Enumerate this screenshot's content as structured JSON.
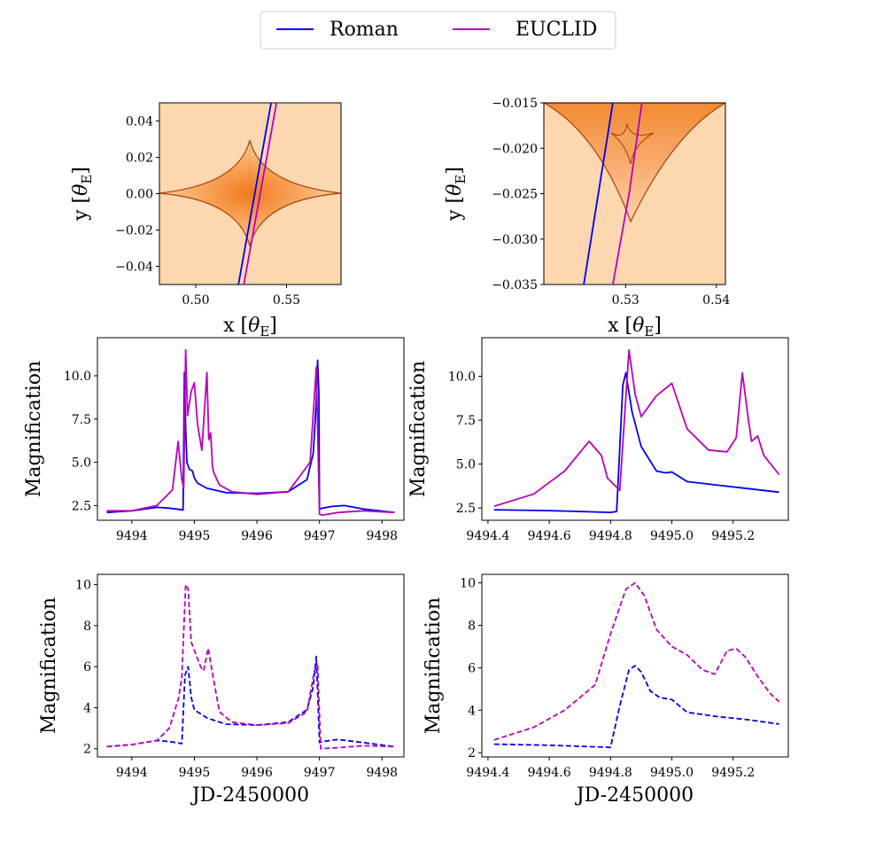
{
  "colors": {
    "roman": "#0000ee",
    "euclid": "#bb00bb",
    "map_light": "#fddcb8",
    "map_dark": "#b34700"
  },
  "legend": {
    "entries": [
      {
        "label": "Roman",
        "color": "#0000ee"
      },
      {
        "label": "EUCLID",
        "color": "#bb00bb"
      }
    ]
  },
  "chart_data": [
    {
      "id": "map_full",
      "type": "heatmap",
      "xlabel": "x [θ_E]",
      "ylabel": "y [θ_E]",
      "xlim": [
        0.48,
        0.58
      ],
      "ylim": [
        -0.05,
        0.05
      ],
      "xticks": [
        0.5,
        0.55
      ],
      "xticklabels": [
        "0.50",
        "0.55"
      ],
      "yticks": [
        -0.04,
        -0.02,
        0.0,
        0.02,
        0.04
      ],
      "yticklabels": [
        "−0.04",
        "−0.02",
        "0.00",
        "0.02",
        "0.04"
      ],
      "series": [
        {
          "name": "Roman",
          "points": [
            [
              0.5235,
              -0.05
            ],
            [
              0.5325,
              0.0
            ],
            [
              0.5415,
              0.05
            ]
          ]
        },
        {
          "name": "EUCLID",
          "points": [
            [
              0.5265,
              -0.05
            ],
            [
              0.5355,
              0.0
            ],
            [
              0.5445,
              0.05
            ]
          ]
        }
      ]
    },
    {
      "id": "map_zoom",
      "type": "heatmap",
      "xlabel": "x [θ_E]",
      "ylabel": "y [θ_E]",
      "xlim": [
        0.521,
        0.541
      ],
      "ylim": [
        -0.035,
        -0.015
      ],
      "xticks": [
        0.53,
        0.54
      ],
      "xticklabels": [
        "0.53",
        "0.54"
      ],
      "yticks": [
        -0.035,
        -0.03,
        -0.025,
        -0.02,
        -0.015
      ],
      "yticklabels": [
        "−0.035",
        "−0.030",
        "−0.025",
        "−0.020",
        "−0.015"
      ],
      "series": [
        {
          "name": "Roman",
          "points": [
            [
              0.5254,
              -0.035
            ],
            [
              0.5286,
              -0.015
            ]
          ]
        },
        {
          "name": "EUCLID",
          "points": [
            [
              0.5286,
              -0.035
            ],
            [
              0.5304,
              -0.025
            ],
            [
              0.5318,
              -0.015
            ]
          ]
        }
      ]
    },
    {
      "id": "lc_full",
      "type": "line",
      "xlabel": "",
      "ylabel": "Magnification",
      "xlim": [
        9493.45,
        9498.35
      ],
      "ylim": [
        1.65,
        12.2
      ],
      "xticks": [
        9494,
        9495,
        9496,
        9497,
        9498
      ],
      "xticklabels": [
        "9494",
        "9495",
        "9496",
        "9497",
        "9498"
      ],
      "yticks": [
        2.5,
        5.0,
        7.5,
        10.0
      ],
      "yticklabels": [
        "2.5",
        "5.0",
        "7.5",
        "10.0"
      ],
      "series": [
        {
          "name": "Roman",
          "style": "solid",
          "x": [
            9493.6,
            9494.0,
            9494.4,
            9494.6,
            9494.82,
            9494.84,
            9494.86,
            9494.88,
            9494.92,
            9494.97,
            9495.0,
            9495.05,
            9495.2,
            9495.5,
            9496.0,
            9496.5,
            9496.8,
            9496.9,
            9496.95,
            9496.97,
            9496.99,
            9497.0,
            9497.05,
            9497.2,
            9497.4,
            9497.7,
            9498.2
          ],
          "y": [
            2.1,
            2.2,
            2.4,
            2.35,
            2.25,
            10.2,
            7.0,
            5.0,
            4.6,
            4.5,
            4.1,
            3.8,
            3.5,
            3.25,
            3.2,
            3.3,
            4.0,
            5.5,
            8.5,
            10.9,
            9.0,
            2.3,
            2.35,
            2.45,
            2.5,
            2.3,
            2.1
          ]
        },
        {
          "name": "EUCLID",
          "style": "solid",
          "x": [
            9493.6,
            9494.0,
            9494.4,
            9494.65,
            9494.74,
            9494.8,
            9494.83,
            9494.86,
            9494.89,
            9494.95,
            9495.0,
            9495.05,
            9495.12,
            9495.2,
            9495.23,
            9495.26,
            9495.29,
            9495.31,
            9495.4,
            9495.6,
            9496.0,
            9496.5,
            9496.85,
            9496.95,
            9497.0,
            9497.05,
            9497.3,
            9497.7,
            9498.2
          ],
          "y": [
            2.2,
            2.2,
            2.5,
            3.4,
            6.2,
            4.0,
            3.5,
            11.5,
            7.7,
            9.1,
            9.6,
            7.2,
            5.7,
            10.2,
            6.3,
            6.7,
            4.8,
            4.4,
            3.7,
            3.3,
            3.15,
            3.3,
            5.0,
            10.5,
            2.0,
            1.95,
            2.1,
            2.2,
            2.1
          ]
        }
      ]
    },
    {
      "id": "lc_zoom",
      "type": "line",
      "xlabel": "",
      "ylabel": "Magnification",
      "xlim": [
        9494.38,
        9495.38
      ],
      "ylim": [
        1.8,
        12.2
      ],
      "xticks": [
        9494.4,
        9494.6,
        9494.8,
        9495.0,
        9495.2
      ],
      "xticklabels": [
        "9494.4",
        "9494.6",
        "9494.8",
        "9495.0",
        "9495.2"
      ],
      "yticks": [
        2.5,
        5.0,
        7.5,
        10.0
      ],
      "yticklabels": [
        "2.5",
        "5.0",
        "7.5",
        "10.0"
      ],
      "series": [
        {
          "name": "Roman",
          "style": "solid",
          "x": [
            9494.42,
            9494.6,
            9494.8,
            9494.82,
            9494.84,
            9494.85,
            9494.87,
            9494.9,
            9494.95,
            9494.98,
            9495.0,
            9495.05,
            9495.15,
            9495.25,
            9495.35
          ],
          "y": [
            2.4,
            2.35,
            2.25,
            2.3,
            9.5,
            10.2,
            8.0,
            6.0,
            4.6,
            4.5,
            4.55,
            4.0,
            3.8,
            3.6,
            3.4
          ]
        },
        {
          "name": "EUCLID",
          "style": "solid",
          "x": [
            9494.42,
            9494.55,
            9494.65,
            9494.73,
            9494.77,
            9494.79,
            9494.83,
            9494.86,
            9494.88,
            9494.9,
            9494.95,
            9495.0,
            9495.05,
            9495.12,
            9495.18,
            9495.21,
            9495.23,
            9495.25,
            9495.26,
            9495.28,
            9495.3,
            9495.35
          ],
          "y": [
            2.6,
            3.3,
            4.6,
            6.3,
            5.5,
            4.2,
            3.5,
            11.5,
            9.0,
            7.7,
            8.9,
            9.6,
            7.0,
            5.8,
            5.7,
            6.5,
            10.2,
            7.5,
            6.3,
            6.6,
            5.5,
            4.4
          ]
        }
      ]
    },
    {
      "id": "lc_full_dashed",
      "type": "line",
      "xlabel": "JD-2450000",
      "ylabel": "Magnification",
      "xlim": [
        9493.45,
        9498.35
      ],
      "ylim": [
        1.6,
        10.5
      ],
      "xticks": [
        9494,
        9495,
        9496,
        9497,
        9498
      ],
      "xticklabels": [
        "9494",
        "9495",
        "9496",
        "9497",
        "9498"
      ],
      "yticks": [
        2,
        4,
        6,
        8,
        10
      ],
      "yticklabels": [
        "2",
        "4",
        "6",
        "8",
        "10"
      ],
      "series": [
        {
          "name": "Roman",
          "style": "dashed",
          "x": [
            9493.6,
            9494.0,
            9494.4,
            9494.6,
            9494.8,
            9494.85,
            9494.9,
            9494.95,
            9495.0,
            9495.2,
            9495.5,
            9496.0,
            9496.5,
            9496.8,
            9496.9,
            9496.95,
            9497.0,
            9497.05,
            9497.3,
            9497.7,
            9498.2
          ],
          "y": [
            2.1,
            2.2,
            2.4,
            2.35,
            2.25,
            5.6,
            6.0,
            4.5,
            3.9,
            3.5,
            3.2,
            3.15,
            3.3,
            3.9,
            5.0,
            6.5,
            2.3,
            2.35,
            2.45,
            2.3,
            2.1
          ]
        },
        {
          "name": "EUCLID",
          "style": "dashed",
          "x": [
            9493.6,
            9494.0,
            9494.4,
            9494.6,
            9494.75,
            9494.8,
            9494.86,
            9494.9,
            9494.95,
            9495.0,
            9495.1,
            9495.15,
            9495.22,
            9495.3,
            9495.4,
            9495.6,
            9496.0,
            9496.5,
            9496.8,
            9496.92,
            9496.97,
            9497.02,
            9497.3,
            9497.7,
            9498.2
          ],
          "y": [
            2.1,
            2.2,
            2.4,
            3.0,
            4.5,
            5.5,
            10.0,
            9.8,
            7.2,
            6.8,
            6.0,
            5.8,
            6.9,
            5.5,
            3.8,
            3.3,
            3.15,
            3.25,
            3.8,
            5.8,
            6.1,
            2.0,
            2.05,
            2.15,
            2.1
          ]
        }
      ]
    },
    {
      "id": "lc_zoom_dashed",
      "type": "line",
      "xlabel": "JD-2450000",
      "ylabel": "Magnification",
      "xlim": [
        9494.38,
        9495.38
      ],
      "ylim": [
        1.8,
        10.4
      ],
      "xticks": [
        9494.4,
        9494.6,
        9494.8,
        9495.0,
        9495.2
      ],
      "xticklabels": [
        "9494.4",
        "9494.6",
        "9494.8",
        "9495.0",
        "9495.2"
      ],
      "yticks": [
        2,
        4,
        6,
        8,
        10
      ],
      "yticklabels": [
        "2",
        "4",
        "6",
        "8",
        "10"
      ],
      "series": [
        {
          "name": "Roman",
          "style": "dashed",
          "x": [
            9494.42,
            9494.6,
            9494.8,
            9494.83,
            9494.86,
            9494.88,
            9494.9,
            9494.93,
            9494.96,
            9495.0,
            9495.05,
            9495.15,
            9495.25,
            9495.35
          ],
          "y": [
            2.4,
            2.35,
            2.25,
            4.2,
            5.9,
            6.1,
            5.8,
            4.9,
            4.6,
            4.5,
            3.9,
            3.7,
            3.55,
            3.35
          ]
        },
        {
          "name": "EUCLID",
          "style": "dashed",
          "x": [
            9494.42,
            9494.55,
            9494.65,
            9494.75,
            9494.8,
            9494.85,
            9494.88,
            9494.91,
            9494.95,
            9495.0,
            9495.05,
            9495.1,
            9495.14,
            9495.18,
            9495.21,
            9495.24,
            9495.28,
            9495.32,
            9495.35
          ],
          "y": [
            2.6,
            3.2,
            4.0,
            5.2,
            7.6,
            9.7,
            10.0,
            9.4,
            7.8,
            7.0,
            6.6,
            5.9,
            5.7,
            6.8,
            6.9,
            6.5,
            5.6,
            4.8,
            4.4
          ]
        }
      ]
    }
  ]
}
